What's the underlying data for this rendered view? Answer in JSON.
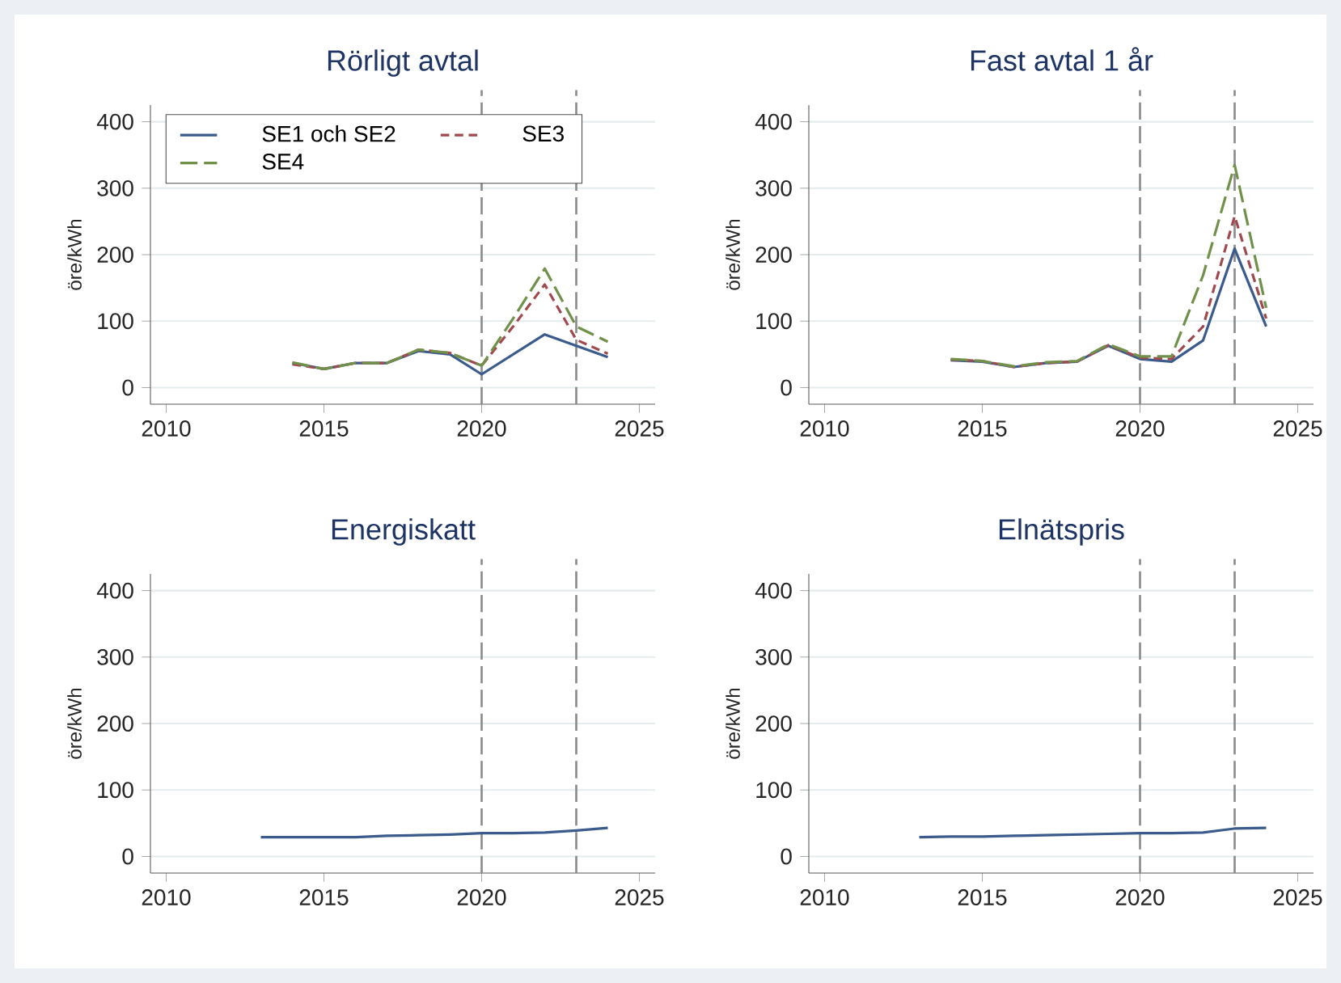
{
  "chart_data": [
    {
      "type": "line",
      "title": "Rörligt avtal",
      "ylabel": "öre/kWh",
      "x": [
        2014,
        2015,
        2016,
        2017,
        2018,
        2019,
        2020,
        2021,
        2022,
        2023,
        2024
      ],
      "xlim": [
        2009.5,
        2025.5
      ],
      "ylim": [
        -25,
        425
      ],
      "xticks": [
        2010,
        2015,
        2020,
        2025
      ],
      "yticks": [
        0,
        100,
        200,
        300,
        400
      ],
      "grid": "y",
      "legend": "top",
      "ref_lines": [
        {
          "axis": "x",
          "value": 2020,
          "color": "#8c8c8c",
          "line_style": "dashed"
        },
        {
          "axis": "x",
          "value": 2023,
          "color": "#8c8c8c",
          "line_style": "dashed"
        }
      ],
      "series": [
        {
          "name": "SE1 och SE2",
          "color": "#3b5b8c",
          "line_style": "solid",
          "values": [
            37,
            28,
            37,
            37,
            55,
            50,
            20,
            50,
            80,
            63,
            46
          ]
        },
        {
          "name": "SE3",
          "color": "#a04a4f",
          "line_style": "dashed",
          "values": [
            35,
            28,
            37,
            37,
            57,
            52,
            33,
            92,
            155,
            72,
            51
          ]
        },
        {
          "name": "SE4",
          "color": "#71914a",
          "line_style": "dashed",
          "values": [
            38,
            28,
            37,
            37,
            57,
            52,
            33,
            104,
            179,
            92,
            69
          ]
        }
      ]
    },
    {
      "type": "line",
      "title": "Fast avtal 1 år",
      "ylabel": "öre/kWh",
      "x": [
        2014,
        2015,
        2016,
        2017,
        2018,
        2019,
        2020,
        2021,
        2022,
        2023,
        2024
      ],
      "xlim": [
        2009.5,
        2025.5
      ],
      "ylim": [
        -25,
        425
      ],
      "xticks": [
        2010,
        2015,
        2020,
        2025
      ],
      "yticks": [
        0,
        100,
        200,
        300,
        400
      ],
      "grid": "y",
      "ref_lines": [
        {
          "axis": "x",
          "value": 2020,
          "color": "#8c8c8c",
          "line_style": "dashed"
        },
        {
          "axis": "x",
          "value": 2023,
          "color": "#8c8c8c",
          "line_style": "dashed"
        }
      ],
      "series": [
        {
          "color": "#3b5b8c",
          "line_style": "solid",
          "values": [
            41,
            39,
            31,
            37,
            39,
            63,
            43,
            39,
            71,
            209,
            92
          ]
        },
        {
          "color": "#a04a4f",
          "line_style": "dashed",
          "values": [
            42,
            40,
            31,
            37,
            39,
            64,
            45,
            43,
            92,
            258,
            104
          ]
        },
        {
          "color": "#71914a",
          "line_style": "dashed",
          "values": [
            43,
            40,
            32,
            38,
            40,
            65,
            47,
            47,
            169,
            335,
            120
          ]
        }
      ]
    },
    {
      "type": "line",
      "title": "Energiskatt",
      "ylabel": "öre/kWh",
      "x": [
        2013,
        2014,
        2015,
        2016,
        2017,
        2018,
        2019,
        2020,
        2021,
        2022,
        2023,
        2024
      ],
      "xlim": [
        2009.5,
        2025.5
      ],
      "ylim": [
        -25,
        425
      ],
      "xticks": [
        2010,
        2015,
        2020,
        2025
      ],
      "yticks": [
        0,
        100,
        200,
        300,
        400
      ],
      "grid": "y",
      "ref_lines": [
        {
          "axis": "x",
          "value": 2020,
          "color": "#8c8c8c",
          "line_style": "dashed"
        },
        {
          "axis": "x",
          "value": 2023,
          "color": "#8c8c8c",
          "line_style": "dashed"
        }
      ],
      "series": [
        {
          "color": "#3b5b8c",
          "line_style": "solid",
          "values": [
            29,
            29,
            29,
            29,
            31,
            32,
            33,
            35,
            35,
            36,
            39,
            43
          ]
        }
      ]
    },
    {
      "type": "line",
      "title": "Elnätspris",
      "ylabel": "öre/kWh",
      "x": [
        2013,
        2014,
        2015,
        2016,
        2017,
        2018,
        2019,
        2020,
        2021,
        2022,
        2023,
        2024
      ],
      "xlim": [
        2009.5,
        2025.5
      ],
      "ylim": [
        -25,
        425
      ],
      "xticks": [
        2010,
        2015,
        2020,
        2025
      ],
      "yticks": [
        0,
        100,
        200,
        300,
        400
      ],
      "grid": "y",
      "ref_lines": [
        {
          "axis": "x",
          "value": 2020,
          "color": "#8c8c8c",
          "line_style": "dashed"
        },
        {
          "axis": "x",
          "value": 2023,
          "color": "#8c8c8c",
          "line_style": "dashed"
        }
      ],
      "series": [
        {
          "color": "#3b5b8c",
          "line_style": "solid",
          "values": [
            29,
            30,
            30,
            31,
            32,
            33,
            34,
            35,
            35,
            36,
            42,
            43
          ]
        }
      ]
    }
  ]
}
